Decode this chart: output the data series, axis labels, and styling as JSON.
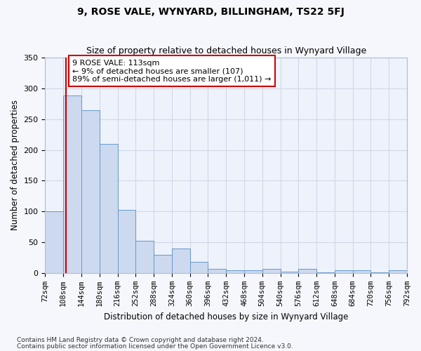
{
  "title": "9, ROSE VALE, WYNYARD, BILLINGHAM, TS22 5FJ",
  "subtitle": "Size of property relative to detached houses in Wynyard Village",
  "xlabel": "Distribution of detached houses by size in Wynyard Village",
  "ylabel": "Number of detached properties",
  "bin_edges": [
    72,
    108,
    144,
    180,
    216,
    252,
    288,
    324,
    360,
    396,
    432,
    468,
    504,
    540,
    576,
    612,
    648,
    684,
    720,
    756,
    792
  ],
  "bar_heights": [
    100,
    288,
    265,
    210,
    103,
    52,
    30,
    40,
    18,
    7,
    5,
    4,
    7,
    2,
    7,
    1,
    5,
    4,
    1,
    4
  ],
  "bar_color": "#ccd9ee",
  "bar_edgecolor": "#6699cc",
  "grid_color": "#d0d8e8",
  "vline_x": 113,
  "vline_color": "#cc0000",
  "annotation_text": "9 ROSE VALE: 113sqm\n← 9% of detached houses are smaller (107)\n89% of semi-detached houses are larger (1,011) →",
  "annotation_box_color": "#cc0000",
  "annotation_text_color": "#000000",
  "ylim": [
    0,
    350
  ],
  "yticks": [
    0,
    50,
    100,
    150,
    200,
    250,
    300,
    350
  ],
  "footer_line1": "Contains HM Land Registry data © Crown copyright and database right 2024.",
  "footer_line2": "Contains public sector information licensed under the Open Government Licence v3.0.",
  "background_color": "#f5f7fc",
  "plot_background": "#eef2fa"
}
